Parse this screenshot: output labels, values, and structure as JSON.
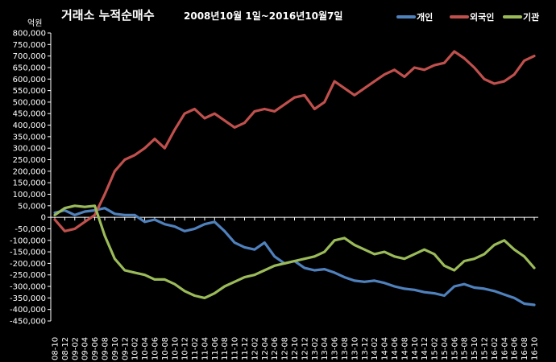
{
  "chart_data": {
    "type": "line",
    "title": "거래소 누적순매수",
    "subtitle": "2008년10월 1일~2016년10월7일",
    "ylabel": "억원",
    "ylim": [
      -450000,
      800000
    ],
    "yticks": [
      800000,
      750000,
      700000,
      650000,
      600000,
      550000,
      500000,
      450000,
      400000,
      350000,
      300000,
      250000,
      200000,
      150000,
      100000,
      50000,
      0,
      -50000,
      -100000,
      -150000,
      -200000,
      -250000,
      -300000,
      -350000,
      -400000,
      -450000
    ],
    "ytick_labels": [
      "800,000",
      "750,000",
      "700,000",
      "650,000",
      "600,000",
      "550,000",
      "500,000",
      "450,000",
      "400,000",
      "350,000",
      "300,000",
      "250,000",
      "200,000",
      "150,000",
      "100,000",
      "50,000",
      "0",
      "-50,000",
      "-100,000",
      "-150,000",
      "-200,000",
      "-250,000",
      "-300,000",
      "-350,000",
      "-400,000",
      "-450,000"
    ],
    "categories": [
      "08-10",
      "08-12",
      "09-02",
      "09-04",
      "09-06",
      "09-08",
      "09-10",
      "09-12",
      "10-02",
      "10-04",
      "10-06",
      "10-08",
      "10-10",
      "10-12",
      "11-02",
      "11-04",
      "11-06",
      "11-08",
      "11-10",
      "11-12",
      "12-02",
      "12-04",
      "12-06",
      "12-08",
      "12-10",
      "12-12",
      "13-02",
      "13-04",
      "13-06",
      "13-08",
      "13-10",
      "13-12",
      "14-02",
      "14-04",
      "14-06",
      "14-08",
      "14-10",
      "14-12",
      "15-02",
      "15-04",
      "15-06",
      "15-08",
      "15-10",
      "15-12",
      "16-02",
      "16-04",
      "16-06",
      "16-08",
      "16-10"
    ],
    "legend_position": "top-right",
    "grid": false,
    "series": [
      {
        "name": "개인",
        "color": "#4F81BD",
        "values": [
          20000,
          30000,
          10000,
          25000,
          30000,
          40000,
          15000,
          10000,
          10000,
          -20000,
          -10000,
          -30000,
          -40000,
          -60000,
          -50000,
          -30000,
          -20000,
          -60000,
          -110000,
          -130000,
          -140000,
          -110000,
          -170000,
          -200000,
          -190000,
          -220000,
          -230000,
          -225000,
          -240000,
          -260000,
          -275000,
          -280000,
          -275000,
          -285000,
          -300000,
          -310000,
          -315000,
          -325000,
          -330000,
          -340000,
          -300000,
          -290000,
          -305000,
          -310000,
          -320000,
          -335000,
          -350000,
          -375000,
          -380000
        ]
      },
      {
        "name": "외국인",
        "color": "#C0504D",
        "values": [
          -10000,
          -60000,
          -50000,
          -20000,
          10000,
          100000,
          200000,
          250000,
          270000,
          300000,
          340000,
          300000,
          380000,
          450000,
          470000,
          430000,
          450000,
          420000,
          390000,
          410000,
          460000,
          470000,
          460000,
          490000,
          520000,
          530000,
          470000,
          500000,
          590000,
          560000,
          530000,
          560000,
          590000,
          620000,
          640000,
          610000,
          650000,
          640000,
          660000,
          670000,
          720000,
          690000,
          650000,
          600000,
          580000,
          590000,
          620000,
          680000,
          700000
        ]
      },
      {
        "name": "기관",
        "color": "#9BBB59",
        "values": [
          10000,
          40000,
          50000,
          45000,
          50000,
          -80000,
          -180000,
          -230000,
          -240000,
          -250000,
          -270000,
          -270000,
          -290000,
          -320000,
          -340000,
          -350000,
          -330000,
          -300000,
          -280000,
          -260000,
          -250000,
          -230000,
          -210000,
          -200000,
          -190000,
          -180000,
          -170000,
          -150000,
          -100000,
          -90000,
          -120000,
          -140000,
          -160000,
          -150000,
          -170000,
          -180000,
          -160000,
          -140000,
          -160000,
          -210000,
          -230000,
          -190000,
          -180000,
          -160000,
          -120000,
          -100000,
          -140000,
          -170000,
          -220000
        ]
      }
    ]
  }
}
